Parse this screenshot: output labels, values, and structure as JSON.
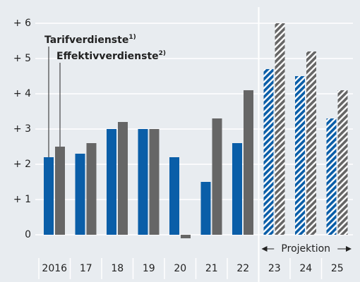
{
  "chart_data": {
    "type": "bar",
    "categories": [
      "2016",
      "17",
      "18",
      "19",
      "20",
      "21",
      "22",
      "23",
      "24",
      "25"
    ],
    "series": [
      {
        "name": "Tarifverdienste",
        "footnote": "1)",
        "color": "#0a5ea8",
        "values": [
          2.2,
          2.3,
          3.0,
          3.0,
          2.2,
          1.5,
          2.6,
          4.7,
          4.5,
          3.3
        ]
      },
      {
        "name": "Effektivverdienste",
        "footnote": "2)",
        "color": "#666666",
        "values": [
          2.5,
          2.6,
          3.2,
          3.0,
          -0.1,
          3.3,
          4.1,
          6.0,
          5.2,
          4.1
        ]
      }
    ],
    "ylim": [
      0,
      6
    ],
    "yticks": [
      0,
      {
        "value": 1,
        "label": "+ 1"
      },
      {
        "value": 2,
        "label": "+ 2"
      },
      {
        "value": 3,
        "label": "+ 3"
      },
      {
        "value": 4,
        "label": "+ 4"
      },
      {
        "value": 5,
        "label": "+ 5"
      },
      {
        "value": 6,
        "label": "+ 6"
      }
    ],
    "grid": true,
    "projection_start": 7,
    "projection_label": "Projektion"
  }
}
